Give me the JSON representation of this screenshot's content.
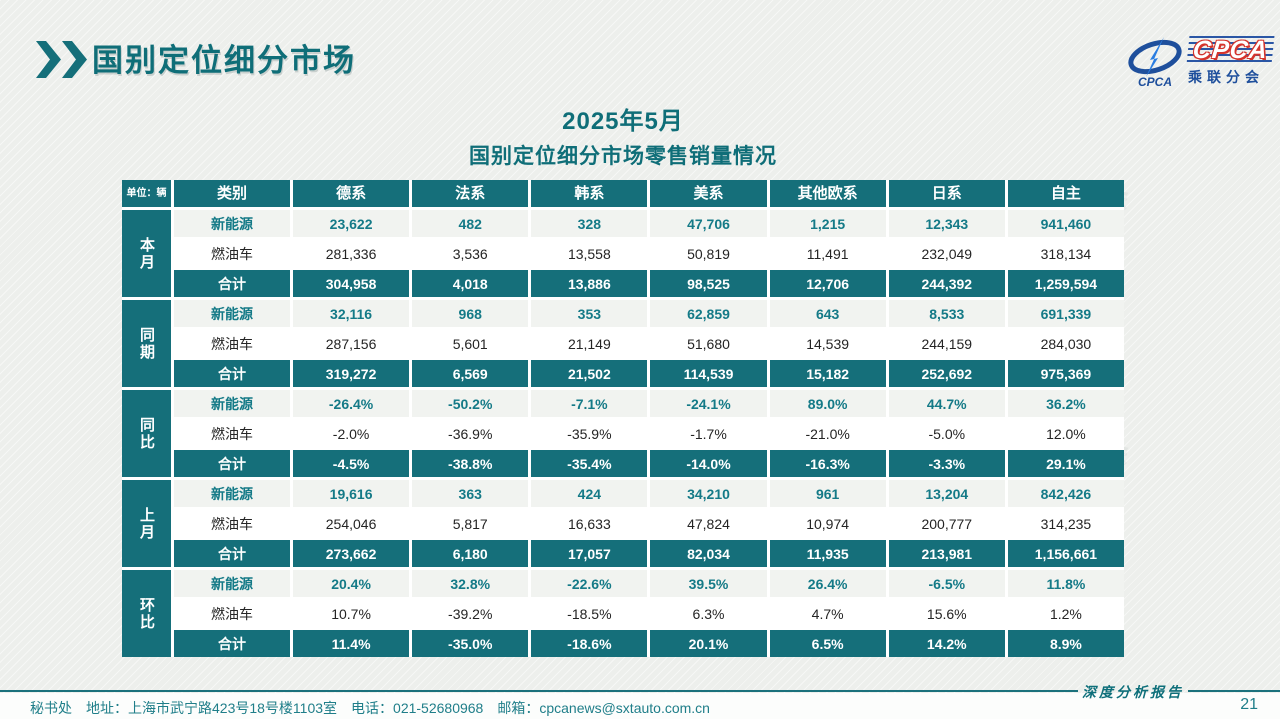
{
  "header": {
    "title": "国别定位细分市场"
  },
  "logo": {
    "icon_text": "CPCA",
    "brand": "CPCA",
    "brand_sub": "乘联分会"
  },
  "subtitle": {
    "line1": "2025年5月",
    "line2": "国别定位细分市场零售销量情况"
  },
  "table": {
    "unit_label": "单位：辆",
    "category_header": "类别",
    "columns": [
      "德系",
      "法系",
      "韩系",
      "美系",
      "其他欧系",
      "日系",
      "自主"
    ],
    "groups": [
      {
        "label": "本月",
        "rows": [
          {
            "type": "新能源",
            "values": [
              "23,622",
              "482",
              "328",
              "47,706",
              "1,215",
              "12,343",
              "941,460"
            ]
          },
          {
            "type": "燃油车",
            "values": [
              "281,336",
              "3,536",
              "13,558",
              "50,819",
              "11,491",
              "232,049",
              "318,134"
            ]
          },
          {
            "type": "合计",
            "values": [
              "304,958",
              "4,018",
              "13,886",
              "98,525",
              "12,706",
              "244,392",
              "1,259,594"
            ]
          }
        ]
      },
      {
        "label": "同期",
        "rows": [
          {
            "type": "新能源",
            "values": [
              "32,116",
              "968",
              "353",
              "62,859",
              "643",
              "8,533",
              "691,339"
            ]
          },
          {
            "type": "燃油车",
            "values": [
              "287,156",
              "5,601",
              "21,149",
              "51,680",
              "14,539",
              "244,159",
              "284,030"
            ]
          },
          {
            "type": "合计",
            "values": [
              "319,272",
              "6,569",
              "21,502",
              "114,539",
              "15,182",
              "252,692",
              "975,369"
            ]
          }
        ]
      },
      {
        "label": "同比",
        "rows": [
          {
            "type": "新能源",
            "values": [
              "-26.4%",
              "-50.2%",
              "-7.1%",
              "-24.1%",
              "89.0%",
              "44.7%",
              "36.2%"
            ]
          },
          {
            "type": "燃油车",
            "values": [
              "-2.0%",
              "-36.9%",
              "-35.9%",
              "-1.7%",
              "-21.0%",
              "-5.0%",
              "12.0%"
            ]
          },
          {
            "type": "合计",
            "values": [
              "-4.5%",
              "-38.8%",
              "-35.4%",
              "-14.0%",
              "-16.3%",
              "-3.3%",
              "29.1%"
            ]
          }
        ]
      },
      {
        "label": "上月",
        "rows": [
          {
            "type": "新能源",
            "values": [
              "19,616",
              "363",
              "424",
              "34,210",
              "961",
              "13,204",
              "842,426"
            ]
          },
          {
            "type": "燃油车",
            "values": [
              "254,046",
              "5,817",
              "16,633",
              "47,824",
              "10,974",
              "200,777",
              "314,235"
            ]
          },
          {
            "type": "合计",
            "values": [
              "273,662",
              "6,180",
              "17,057",
              "82,034",
              "11,935",
              "213,981",
              "1,156,661"
            ]
          }
        ]
      },
      {
        "label": "环比",
        "rows": [
          {
            "type": "新能源",
            "values": [
              "20.4%",
              "32.8%",
              "-22.6%",
              "39.5%",
              "26.4%",
              "-6.5%",
              "11.8%"
            ]
          },
          {
            "type": "燃油车",
            "values": [
              "10.7%",
              "-39.2%",
              "-18.5%",
              "6.3%",
              "4.7%",
              "15.6%",
              "1.2%"
            ]
          },
          {
            "type": "合计",
            "values": [
              "11.4%",
              "-35.0%",
              "-18.6%",
              "20.1%",
              "6.5%",
              "14.2%",
              "8.9%"
            ]
          }
        ]
      }
    ]
  },
  "footer": {
    "address": "秘书处　地址：上海市武宁路423号18号楼1103室　电话：021-52680968　邮箱：cpcanews@sxtauto.com.cn",
    "report_label": "深度分析报告",
    "page_number": "21"
  },
  "watermark": {
    "text": "CPCA 乘联分会"
  },
  "colors": {
    "teal": "#156F7A",
    "teal_text": "#10707C",
    "nev_value": "#147A87",
    "logo_blue": "#1E4F9C",
    "logo_red": "#D5342C"
  }
}
